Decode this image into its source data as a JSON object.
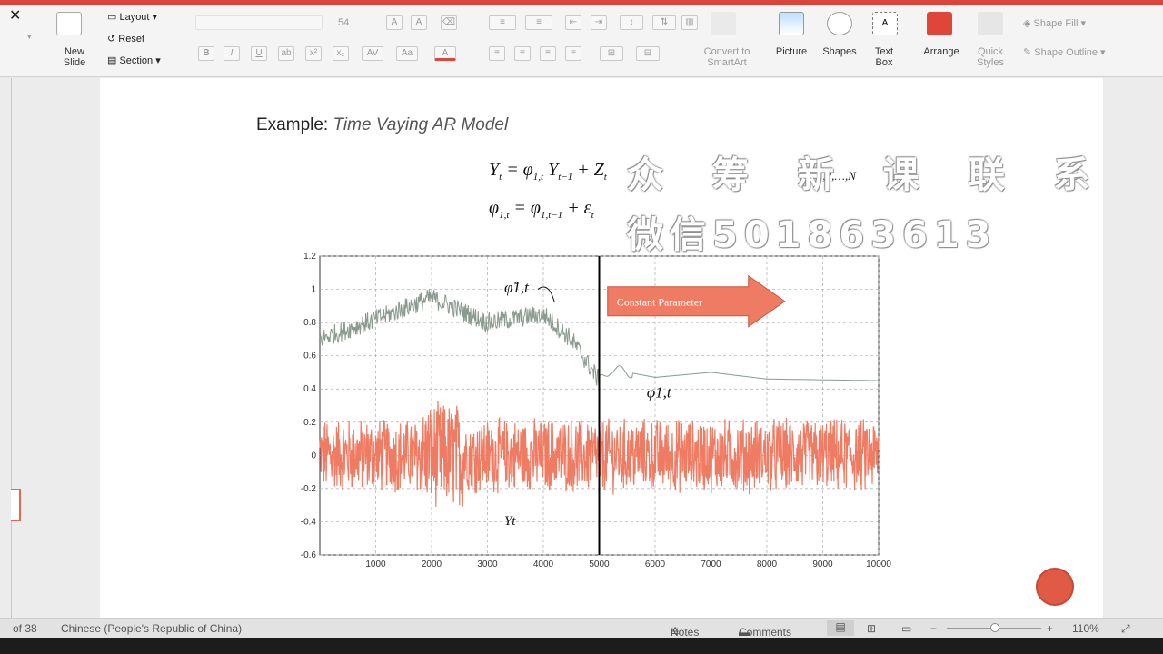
{
  "ribbon": {
    "new_slide": "New\nSlide",
    "layout": "Layout",
    "reset": "Reset",
    "section": "Section",
    "font_size": "54",
    "convert_smartart": "Convert to\nSmartArt",
    "picture": "Picture",
    "shapes": "Shapes",
    "text_box": "Text\nBox",
    "arrange": "Arrange",
    "quick_styles": "Quick\nStyles",
    "shape_fill": "Shape Fill",
    "shape_outline": "Shape Outline"
  },
  "slide": {
    "example_label": "Example:",
    "example_title": "Time Vaying AR Model",
    "time_index": "t = 1,2,…,N",
    "watermark_line1": "众 筹 新 课 联 系",
    "watermark_line2": "微信501863613"
  },
  "chart_data": {
    "type": "line",
    "xlim": [
      0,
      10000
    ],
    "ylim": [
      -0.6,
      1.2
    ],
    "x_ticks": [
      "1000",
      "2000",
      "3000",
      "4000",
      "5000",
      "6000",
      "7000",
      "8000",
      "9000",
      "10000"
    ],
    "y_ticks": [
      "-0.6",
      "-0.4",
      "-0.2",
      "0",
      "0.2",
      "0.4",
      "0.6",
      "0.8",
      "1",
      "1.2"
    ],
    "grid": true,
    "vertical_line_x": 5000,
    "annotations": {
      "arrow_label": "Constant Parameter",
      "phi_hat": "φ̂1,t",
      "phi": "φ1,t",
      "y_label": "Yt"
    },
    "colors": {
      "estimate": "#8a9a8e",
      "true_param": "#8a9a8e",
      "series": "#ef7b63",
      "arrow": "#ef7b63",
      "vline": "#000000"
    },
    "series": [
      {
        "name": "φ̂1,t",
        "approx_levels": [
          [
            0,
            0.7
          ],
          [
            1000,
            0.82
          ],
          [
            2000,
            0.95
          ],
          [
            3000,
            0.8
          ],
          [
            4000,
            0.85
          ],
          [
            4500,
            0.7
          ],
          [
            5000,
            0.45
          ],
          [
            5200,
            0.52
          ],
          [
            6000,
            0.47
          ],
          [
            7000,
            0.5
          ],
          [
            8000,
            0.46
          ],
          [
            10000,
            0.45
          ]
        ]
      },
      {
        "name": "Yt",
        "approx_levels": [
          [
            0,
            0.0
          ],
          [
            10000,
            0.0
          ]
        ],
        "amplitude": 0.2
      }
    ]
  },
  "statusbar": {
    "slide_pos": "of 38",
    "language": "Chinese (People's Republic of China)",
    "notes": "Notes",
    "comments": "Comments",
    "zoom": "110%"
  }
}
